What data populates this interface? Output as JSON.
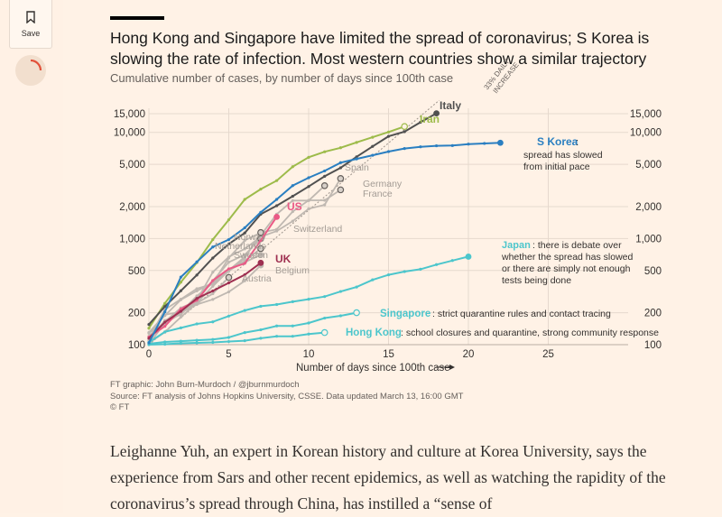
{
  "sidebar": {
    "save_label": "Save"
  },
  "colors": {
    "background": "#fff2e6",
    "axis": "#b8ada4",
    "grid": "#e6d9ce",
    "text": "#33302e",
    "muted": "#66605c",
    "grey_series": "#bfb8b1",
    "italy": "#505050",
    "iran": "#9dbb4a",
    "skorea": "#2a7fc1",
    "us": "#ea5a86",
    "uk": "#9e2f50",
    "teal": "#4cc6cc"
  },
  "article": {
    "body": "Leighanne Yuh, an expert in Korean history and culture at Korea University, says the experience from Sars and other recent epidemics, as well as watching the rapidity of the coronavirus’s spread through China, has instilled a “sense of"
  },
  "chart_data": {
    "type": "line",
    "title": "Hong Kong and Singapore have limited the spread of coronavirus; S Korea is slowing the rate of infection. Most western countries show a similar trajectory",
    "subtitle": "Cumulative number of cases, by number of days since 100th case",
    "xlabel": "Number of days since 100th case",
    "ylabel": "",
    "xlim": [
      0,
      30
    ],
    "ylim": [
      100,
      15000
    ],
    "yscale": "log",
    "x_ticks": [
      0,
      5,
      10,
      15,
      20,
      25
    ],
    "y_ticks": [
      100,
      200,
      500,
      1000,
      2000,
      5000,
      10000,
      15000
    ],
    "y_tick_labels": [
      "100",
      "200",
      "500",
      "1,000",
      "2,000",
      "5,000",
      "10,000",
      "15,000"
    ],
    "x_tick_labels": [
      "0",
      "5",
      "10",
      "15",
      "20",
      "25"
    ],
    "reference_line": {
      "label_line1": "33% DAILY",
      "label_line2": "INCREASE",
      "growth": 1.33
    },
    "series": [
      {
        "name": "Italy",
        "label": "Italy",
        "color": "#505050",
        "x": [
          0,
          1,
          2,
          3,
          4,
          5,
          6,
          7,
          8,
          9,
          10,
          11,
          12,
          13,
          14,
          15,
          16,
          17,
          18
        ],
        "values": [
          155,
          229,
          322,
          453,
          655,
          888,
          1128,
          1694,
          2036,
          2502,
          3089,
          3858,
          4636,
          5883,
          7375,
          9172,
          10149,
          12462,
          15113
        ]
      },
      {
        "name": "Iran",
        "label": "Iran",
        "color": "#9dbb4a",
        "x": [
          0,
          1,
          2,
          3,
          4,
          5,
          6,
          7,
          8,
          9,
          10,
          11,
          12,
          13,
          14,
          15,
          16
        ],
        "values": [
          143,
          245,
          388,
          593,
          978,
          1501,
          2336,
          2922,
          3513,
          4747,
          5823,
          6566,
          7161,
          8042,
          9000,
          10075,
          11364
        ]
      },
      {
        "name": "S Korea",
        "label": "S Korea",
        "color": "#2a7fc1",
        "x": [
          0,
          1,
          2,
          3,
          4,
          5,
          6,
          7,
          8,
          9,
          10,
          11,
          12,
          13,
          14,
          15,
          16,
          17,
          18,
          19,
          20,
          21,
          22
        ],
        "values": [
          104,
          204,
          433,
          602,
          833,
          977,
          1261,
          1766,
          2337,
          3150,
          3736,
          4335,
          5186,
          5621,
          6088,
          6593,
          7041,
          7314,
          7478,
          7513,
          7755,
          7869,
          7979
        ]
      },
      {
        "name": "Spain",
        "label": "Spain",
        "color": "#bfb8b1",
        "x": [
          0,
          1,
          2,
          3,
          4,
          5,
          6,
          7,
          8,
          9,
          10,
          11
        ],
        "values": [
          120,
          165,
          222,
          259,
          400,
          500,
          673,
          1073,
          1695,
          2277,
          2277,
          3146
        ]
      },
      {
        "name": "Germany",
        "label": "Germany",
        "color": "#bfb8b1",
        "x": [
          0,
          1,
          2,
          3,
          4,
          5,
          6,
          7,
          8,
          9,
          10,
          11,
          12
        ],
        "values": [
          130,
          159,
          196,
          262,
          482,
          670,
          799,
          1040,
          1176,
          1457,
          1908,
          2078,
          3675
        ]
      },
      {
        "name": "France",
        "label": "France",
        "color": "#bfb8b1",
        "x": [
          0,
          1,
          2,
          3,
          4,
          5,
          6,
          7,
          8,
          9,
          10,
          11,
          12
        ],
        "values": [
          130,
          191,
          204,
          288,
          380,
          656,
          959,
          1136,
          1219,
          1794,
          2293,
          2293,
          2876
        ]
      },
      {
        "name": "US",
        "label": "US",
        "color": "#ea5a86",
        "x": [
          0,
          1,
          2,
          3,
          4,
          5,
          6,
          7,
          8
        ],
        "values": [
          118,
          149,
          217,
          262,
          402,
          518,
          583,
          959,
          1600
        ]
      },
      {
        "name": "Switzerland",
        "label": "Switzerland",
        "color": "#bfb8b1",
        "x": [
          0,
          1,
          2,
          3,
          4,
          5,
          6,
          7
        ],
        "values": [
          114,
          214,
          268,
          337,
          374,
          491,
          652,
          1139
        ]
      },
      {
        "name": "Norway",
        "label": "Norway",
        "color": "#bfb8b1",
        "x": [
          0,
          1,
          2,
          3,
          4,
          5,
          6,
          7
        ],
        "values": [
          113,
          169,
          192,
          277,
          400,
          598,
          702,
          996
        ]
      },
      {
        "name": "Netherlands",
        "label": "Netherlands",
        "color": "#bfb8b1",
        "x": [
          0,
          1,
          2,
          3,
          4,
          5,
          6,
          7
        ],
        "values": [
          128,
          188,
          265,
          321,
          382,
          503,
          614,
          804
        ]
      },
      {
        "name": "Sweden",
        "label": "Sweden",
        "color": "#bfb8b1",
        "x": [
          0,
          1,
          2,
          3,
          4,
          5,
          6,
          7
        ],
        "values": [
          101,
          161,
          203,
          248,
          355,
          500,
          599,
          700
        ]
      },
      {
        "name": "UK",
        "label": "UK",
        "color": "#9e2f50",
        "x": [
          0,
          1,
          2,
          3,
          4,
          5,
          6,
          7
        ],
        "values": [
          115,
          163,
          206,
          273,
          321,
          382,
          456,
          590
        ]
      },
      {
        "name": "Belgium",
        "label": "Belgium",
        "color": "#bfb8b1",
        "x": [
          0,
          1,
          2,
          3,
          4,
          5,
          6,
          7
        ],
        "values": [
          109,
          169,
          200,
          239,
          267,
          314,
          399,
          559
        ]
      },
      {
        "name": "Austria",
        "label": "Austria",
        "color": "#bfb8b1",
        "x": [
          0,
          1,
          2,
          3,
          4,
          5
        ],
        "values": [
          104,
          131,
          182,
          246,
          302,
          430
        ]
      },
      {
        "name": "Japan",
        "label": "Japan",
        "color": "#4cc6cc",
        "x": [
          0,
          1,
          2,
          3,
          4,
          5,
          6,
          7,
          8,
          9,
          10,
          11,
          12,
          13,
          14,
          15,
          16,
          17,
          18,
          19,
          20
        ],
        "values": [
          105,
          132,
          144,
          157,
          164,
          186,
          210,
          230,
          239,
          254,
          268,
          284,
          317,
          349,
          408,
          455,
          488,
          514,
          568,
          620,
          675
        ]
      },
      {
        "name": "Singapore",
        "label": "Singapore",
        "color": "#4cc6cc",
        "x": [
          0,
          1,
          2,
          3,
          4,
          5,
          6,
          7,
          8,
          9,
          10,
          11,
          12,
          13
        ],
        "values": [
          102,
          106,
          108,
          110,
          112,
          117,
          130,
          138,
          150,
          150,
          160,
          178,
          187,
          200
        ]
      },
      {
        "name": "Hong Kong",
        "label": "Hong Kong",
        "color": "#4cc6cc",
        "x": [
          0,
          1,
          2,
          3,
          4,
          5,
          6,
          7,
          8,
          9,
          10,
          11
        ],
        "values": [
          100,
          101,
          103,
          104,
          105,
          107,
          109,
          115,
          120,
          120,
          126,
          130
        ]
      }
    ],
    "annotations": {
      "skorea": [
        "spread has slowed",
        "from initial pace"
      ],
      "japan_rest": ": there is debate over",
      "japan": [
        "whether the spread has slowed",
        "or there are simply not enough",
        "tests being done"
      ],
      "singapore": ": strict quarantine rules and contact tracing",
      "hongkong": ": school closures and quarantine, strong community response",
      "skorea_colon": " :"
    },
    "source": {
      "credit": "FT graphic: John Burn-Murdoch / @jburnmurdoch",
      "line": "Source: FT analysis of Johns Hopkins University, CSSE. Data updated March 13, 16:00 GMT",
      "copyright": "© FT"
    }
  }
}
